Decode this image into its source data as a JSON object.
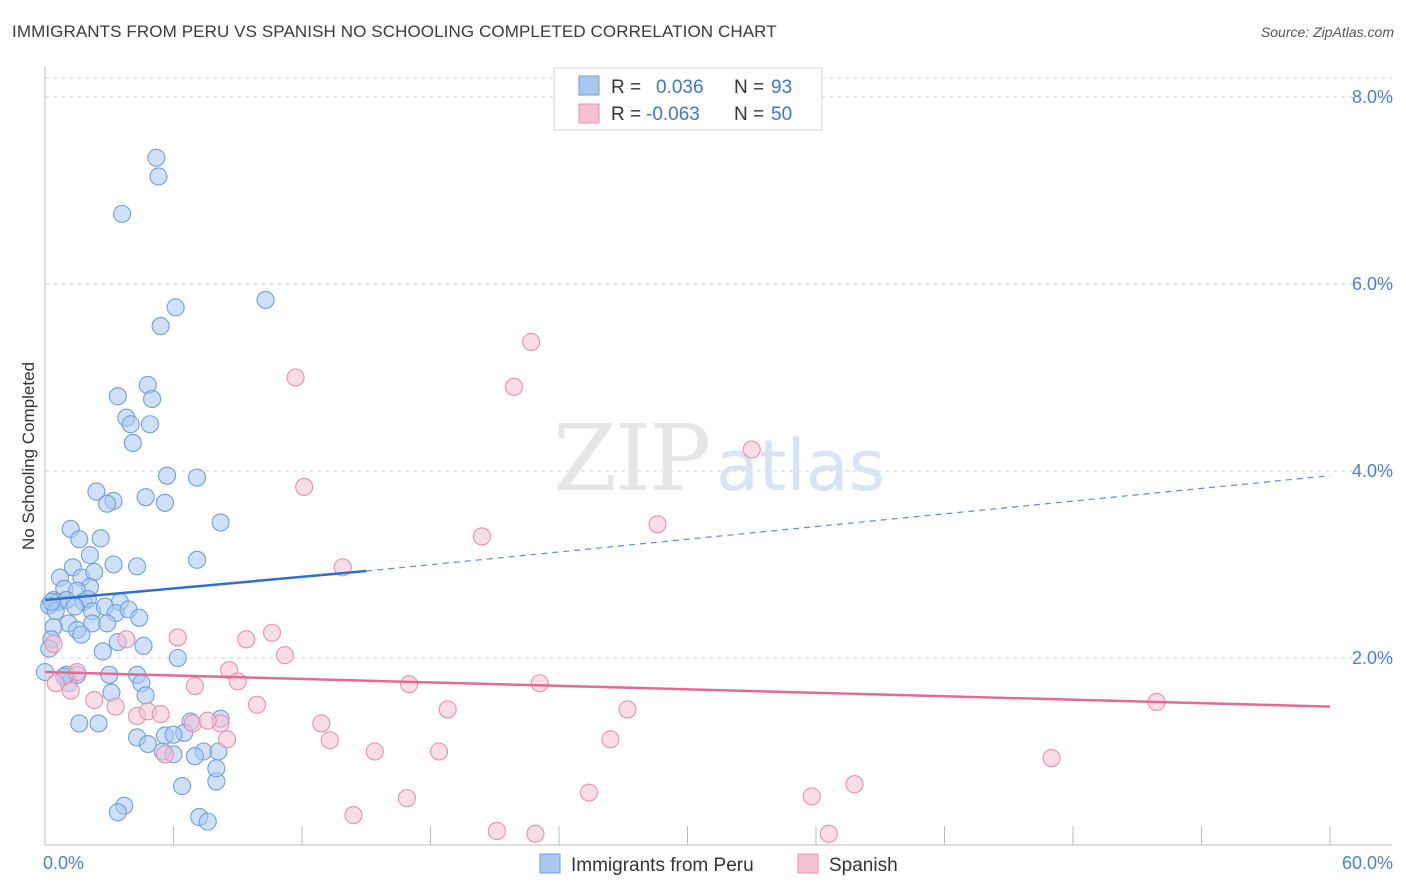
{
  "header": {
    "title": "IMMIGRANTS FROM PERU VS SPANISH NO SCHOOLING COMPLETED CORRELATION CHART",
    "source": "Source: ZipAtlas.com"
  },
  "watermark": {
    "zip": "ZIP",
    "atlas": "atlas"
  },
  "colors": {
    "blue_fill": "#a9c8f0",
    "blue_stroke": "#6f9fdc",
    "blue_line": "#2f6fcf",
    "pink_fill": "#f6c2d3",
    "pink_stroke": "#ea8fae",
    "pink_line": "#e46a95",
    "axis_label": "#4b7fd6",
    "grid": "#d6d6d6"
  },
  "legend": {
    "row1": {
      "r_label": "R =",
      "r_value": "0.036",
      "n_label": "N =",
      "n_value": "93"
    },
    "row2": {
      "r_label": "R =",
      "r_value": "-0.063",
      "n_label": "N =",
      "n_value": "50"
    }
  },
  "chart_data": {
    "type": "scatter",
    "title": "IMMIGRANTS FROM PERU VS SPANISH NO SCHOOLING COMPLETED CORRELATION CHART",
    "xlabel": "",
    "ylabel": "No Schooling Completed",
    "xlim": [
      0,
      60
    ],
    "ylim": [
      0,
      8.3
    ],
    "x_tick_labels": [
      "0.0%",
      "60.0%"
    ],
    "y_ticks": [
      2,
      4,
      6,
      8
    ],
    "y_tick_labels": [
      "2.0%",
      "4.0%",
      "6.0%",
      "8.0%"
    ],
    "grid": true,
    "legend_position": "top-center",
    "series": [
      {
        "name": "Immigrants from Peru",
        "color": "blue",
        "r": 0.036,
        "n": 93,
        "trend": {
          "x_start": 0,
          "y_start": 2.62,
          "x_solid_end": 15,
          "y_solid_end": 2.93,
          "x_end": 60,
          "y_end": 3.95
        },
        "points": [
          [
            5.2,
            7.35
          ],
          [
            5.3,
            7.15
          ],
          [
            3.6,
            6.75
          ],
          [
            10.3,
            5.83
          ],
          [
            6.1,
            5.75
          ],
          [
            5.4,
            5.55
          ],
          [
            3.4,
            4.8
          ],
          [
            4.8,
            4.92
          ],
          [
            5.0,
            4.77
          ],
          [
            3.8,
            4.57
          ],
          [
            4.0,
            4.5
          ],
          [
            4.9,
            4.5
          ],
          [
            4.1,
            4.3
          ],
          [
            5.7,
            3.95
          ],
          [
            7.1,
            3.93
          ],
          [
            2.4,
            3.78
          ],
          [
            3.2,
            3.68
          ],
          [
            4.7,
            3.72
          ],
          [
            2.9,
            3.65
          ],
          [
            5.6,
            3.66
          ],
          [
            8.2,
            3.45
          ],
          [
            1.2,
            3.38
          ],
          [
            1.6,
            3.27
          ],
          [
            2.6,
            3.28
          ],
          [
            2.1,
            3.1
          ],
          [
            7.1,
            3.05
          ],
          [
            1.3,
            2.97
          ],
          [
            3.2,
            3.0
          ],
          [
            4.3,
            2.98
          ],
          [
            0.7,
            2.86
          ],
          [
            1.7,
            2.86
          ],
          [
            2.3,
            2.92
          ],
          [
            0.9,
            2.74
          ],
          [
            2.1,
            2.76
          ],
          [
            1.5,
            2.72
          ],
          [
            0.4,
            2.62
          ],
          [
            0.6,
            2.6
          ],
          [
            1.0,
            2.62
          ],
          [
            1.8,
            2.6
          ],
          [
            2.0,
            2.63
          ],
          [
            3.5,
            2.6
          ],
          [
            0.2,
            2.56
          ],
          [
            0.5,
            2.5
          ],
          [
            1.4,
            2.55
          ],
          [
            2.2,
            2.5
          ],
          [
            2.8,
            2.55
          ],
          [
            3.3,
            2.48
          ],
          [
            3.9,
            2.52
          ],
          [
            4.4,
            2.43
          ],
          [
            1.1,
            2.37
          ],
          [
            1.5,
            2.3
          ],
          [
            2.2,
            2.37
          ],
          [
            2.9,
            2.37
          ],
          [
            0.4,
            2.33
          ],
          [
            0.3,
            2.2
          ],
          [
            1.7,
            2.25
          ],
          [
            3.4,
            2.17
          ],
          [
            4.6,
            2.13
          ],
          [
            0.2,
            2.1
          ],
          [
            2.7,
            2.07
          ],
          [
            6.2,
            2.0
          ],
          [
            0.0,
            1.85
          ],
          [
            1.0,
            1.82
          ],
          [
            1.5,
            1.82
          ],
          [
            3.0,
            1.82
          ],
          [
            4.3,
            1.82
          ],
          [
            4.5,
            1.73
          ],
          [
            1.1,
            1.73
          ],
          [
            3.1,
            1.63
          ],
          [
            4.7,
            1.6
          ],
          [
            8.2,
            1.35
          ],
          [
            6.8,
            1.32
          ],
          [
            2.5,
            1.3
          ],
          [
            4.3,
            1.15
          ],
          [
            4.8,
            1.08
          ],
          [
            5.5,
            1.0
          ],
          [
            6.0,
            0.97
          ],
          [
            8.0,
            0.68
          ],
          [
            6.5,
            1.2
          ],
          [
            7.4,
            1.0
          ],
          [
            7.0,
            0.95
          ],
          [
            8.0,
            0.82
          ],
          [
            7.2,
            0.3
          ],
          [
            3.7,
            0.42
          ],
          [
            3.4,
            0.35
          ],
          [
            6.4,
            0.63
          ],
          [
            7.6,
            0.25
          ],
          [
            8.1,
            1.0
          ],
          [
            5.6,
            1.17
          ],
          [
            6.0,
            1.18
          ],
          [
            1.6,
            1.3
          ],
          [
            0.9,
            1.8
          ],
          [
            0.3,
            2.6
          ]
        ]
      },
      {
        "name": "Spanish",
        "color": "pink",
        "r": -0.063,
        "n": 50,
        "trend": {
          "x_start": 0,
          "y_start": 1.85,
          "x_end": 60,
          "y_end": 1.48
        },
        "points": [
          [
            22.7,
            5.38
          ],
          [
            11.7,
            5.0
          ],
          [
            21.9,
            4.9
          ],
          [
            33.0,
            4.23
          ],
          [
            12.1,
            3.83
          ],
          [
            20.4,
            3.3
          ],
          [
            28.6,
            3.43
          ],
          [
            13.9,
            2.97
          ],
          [
            10.6,
            2.27
          ],
          [
            8.6,
            1.87
          ],
          [
            9.4,
            2.2
          ],
          [
            6.2,
            2.22
          ],
          [
            11.2,
            2.03
          ],
          [
            3.8,
            2.2
          ],
          [
            1.5,
            1.85
          ],
          [
            7.0,
            1.7
          ],
          [
            8.2,
            1.3
          ],
          [
            9.0,
            1.75
          ],
          [
            9.9,
            1.5
          ],
          [
            1.2,
            1.65
          ],
          [
            2.3,
            1.55
          ],
          [
            3.3,
            1.48
          ],
          [
            4.3,
            1.38
          ],
          [
            4.8,
            1.43
          ],
          [
            5.4,
            1.4
          ],
          [
            6.9,
            1.3
          ],
          [
            7.6,
            1.33
          ],
          [
            12.9,
            1.3
          ],
          [
            17.0,
            1.72
          ],
          [
            18.8,
            1.45
          ],
          [
            23.1,
            1.73
          ],
          [
            26.4,
            1.13
          ],
          [
            27.2,
            1.45
          ],
          [
            8.5,
            1.13
          ],
          [
            13.3,
            1.12
          ],
          [
            15.4,
            1.0
          ],
          [
            18.4,
            1.0
          ],
          [
            5.6,
            0.97
          ],
          [
            47.0,
            0.93
          ],
          [
            51.9,
            1.53
          ],
          [
            37.8,
            0.65
          ],
          [
            16.9,
            0.5
          ],
          [
            25.4,
            0.56
          ],
          [
            35.8,
            0.52
          ],
          [
            14.4,
            0.32
          ],
          [
            21.1,
            0.15
          ],
          [
            22.9,
            0.12
          ],
          [
            36.6,
            0.12
          ],
          [
            0.5,
            1.73
          ],
          [
            0.4,
            2.15
          ]
        ]
      }
    ]
  },
  "bottom_legend": {
    "series1": "Immigrants from Peru",
    "series2": "Spanish"
  }
}
